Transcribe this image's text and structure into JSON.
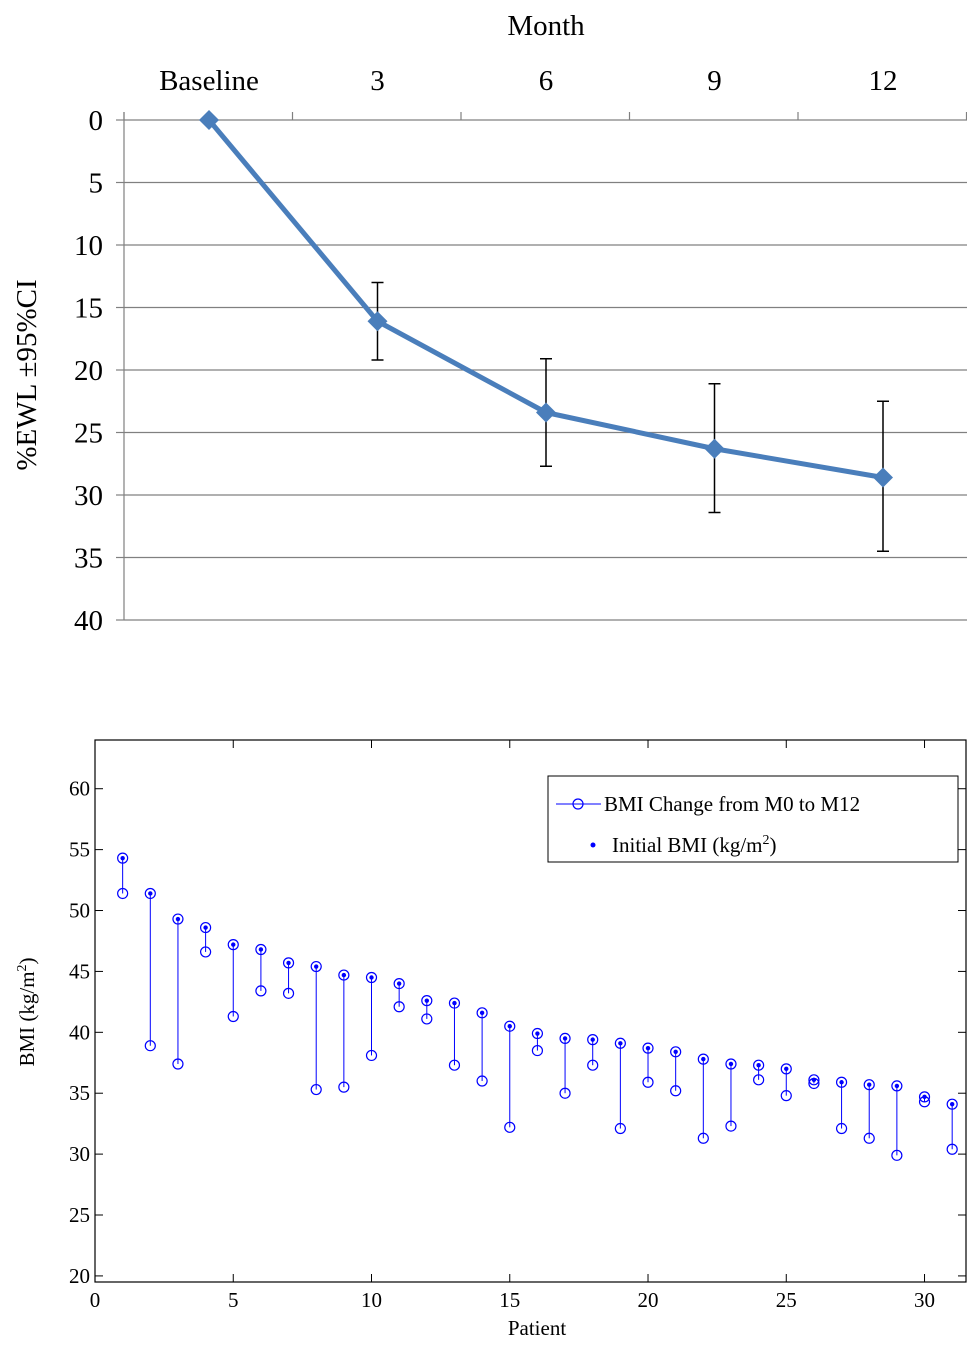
{
  "chart_data": [
    {
      "type": "line",
      "title": "",
      "xlabel": "Month",
      "ylabel": "%EWL ±95%CI",
      "categories": [
        "Baseline",
        "3",
        "6",
        "9",
        "12"
      ],
      "y_axis_inverted": true,
      "ylim": [
        0,
        40
      ],
      "yticks": [
        0,
        5,
        10,
        15,
        20,
        25,
        30,
        35,
        40
      ],
      "grid": true,
      "series": [
        {
          "values": [
            0,
            16.1,
            23.4,
            26.3,
            28.6
          ],
          "ci_lower": [
            0,
            13.0,
            19.1,
            21.1,
            22.5
          ],
          "ci_upper": [
            0,
            19.2,
            27.7,
            31.4,
            34.5
          ]
        }
      ],
      "colors": {
        "line": "#4a7ebb",
        "marker": "#4a7ebb",
        "errorbar": "#000000",
        "grid": "#808080"
      }
    },
    {
      "type": "scatter",
      "title": "",
      "xlabel": "Patient",
      "ylabel_text": "BMI (kg/m",
      "ylabel_sup": "2",
      "ylabel_close": ")",
      "xlim": [
        0,
        31.5
      ],
      "ylim": [
        19.5,
        64
      ],
      "xticks": [
        0,
        5,
        10,
        15,
        20,
        25,
        30
      ],
      "yticks": [
        20,
        25,
        30,
        35,
        40,
        45,
        50,
        55,
        60
      ],
      "legend_position": "top-right",
      "legend": [
        {
          "label": "BMI Change from M0 to M12",
          "marker": "circle-line"
        },
        {
          "label_text": "Initial BMI (kg/m",
          "label_sup": "2",
          "label_close": ")",
          "marker": "dot"
        }
      ],
      "x": [
        1,
        2,
        3,
        4,
        5,
        6,
        7,
        8,
        9,
        10,
        11,
        12,
        13,
        14,
        15,
        16,
        17,
        18,
        19,
        20,
        21,
        22,
        23,
        24,
        25,
        26,
        27,
        28,
        29,
        30,
        31
      ],
      "initial_bmi": [
        54.3,
        51.4,
        49.3,
        48.6,
        47.2,
        46.8,
        45.7,
        45.4,
        44.7,
        44.5,
        44.0,
        42.6,
        42.4,
        41.6,
        40.5,
        39.9,
        39.5,
        39.4,
        39.1,
        38.7,
        38.4,
        37.8,
        37.4,
        37.3,
        37.0,
        36.1,
        35.9,
        35.7,
        35.6,
        34.7,
        34.1
      ],
      "bmi_m12": [
        51.4,
        38.9,
        37.4,
        46.6,
        41.3,
        43.4,
        43.2,
        35.3,
        35.5,
        38.1,
        42.1,
        41.1,
        37.3,
        36.0,
        32.2,
        38.5,
        35.0,
        37.3,
        32.1,
        35.9,
        35.2,
        31.3,
        32.3,
        36.1,
        34.8,
        35.8,
        32.1,
        31.3,
        29.9,
        34.3,
        30.4
      ],
      "colors": {
        "series": "#0000ff"
      }
    }
  ]
}
